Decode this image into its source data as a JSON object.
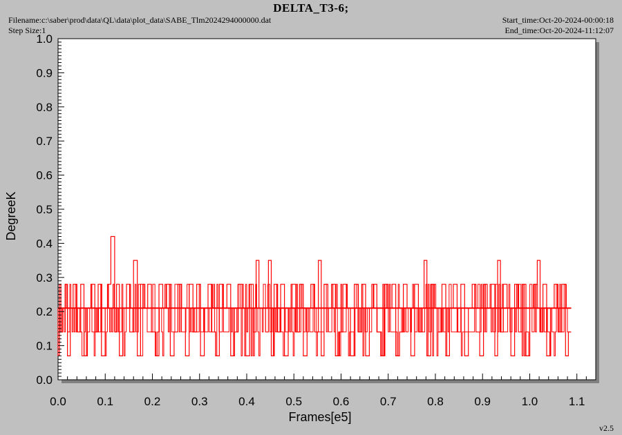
{
  "header": {
    "title": "DELTA_T3-6;",
    "filename": "Filename:c:\\saber\\prod\\data\\QL\\data\\plot_data\\SABE_Tlm2024294000000.dat",
    "step_size": "Step Size:1",
    "start_time": "Start_time:Oct-20-2024-00:00:18",
    "end_time": "End_time:Oct-20-2024-11:12:07"
  },
  "footer": {
    "version": "v2.5"
  },
  "colors": {
    "background": "#c0c0c0",
    "plot_area": "#ffffff",
    "shadow": "#808080",
    "series": "#ff0000",
    "axis": "#000000"
  },
  "chart_data": {
    "type": "line",
    "xlabel": "Frames[e5]",
    "ylabel": "DegreeK",
    "xlim": [
      0.0,
      1.14
    ],
    "ylim": [
      0.0,
      1.0
    ],
    "xticks": [
      "0.0",
      "0.1",
      "0.2",
      "0.3",
      "0.4",
      "0.5",
      "0.6",
      "0.7",
      "0.8",
      "0.9",
      "1.0",
      "1.1"
    ],
    "yticks": [
      "0.0",
      "0.1",
      "0.2",
      "0.3",
      "0.4",
      "0.5",
      "0.6",
      "0.7",
      "0.8",
      "0.9",
      "1.0"
    ],
    "grid": false,
    "series": [
      {
        "levels": [
          0.07,
          0.14,
          0.21,
          0.28
        ],
        "x_range": [
          0.0,
          1.088
        ],
        "points": [
          [
            0.0,
            0.21
          ],
          [
            0.003,
            0.07
          ],
          [
            0.006,
            0.28
          ],
          [
            0.01,
            0.14
          ],
          [
            0.015,
            0.21
          ],
          [
            0.02,
            0.28
          ],
          [
            0.026,
            0.07
          ],
          [
            0.032,
            0.21
          ],
          [
            0.04,
            0.28
          ],
          [
            0.048,
            0.14
          ],
          [
            0.055,
            0.28
          ],
          [
            0.062,
            0.07
          ],
          [
            0.07,
            0.21
          ],
          [
            0.078,
            0.28
          ],
          [
            0.085,
            0.14
          ],
          [
            0.092,
            0.28
          ],
          [
            0.1,
            0.07
          ],
          [
            0.106,
            0.21
          ],
          [
            0.112,
            0.28
          ],
          [
            0.12,
            0.42
          ],
          [
            0.124,
            0.14
          ],
          [
            0.13,
            0.28
          ],
          [
            0.137,
            0.07
          ],
          [
            0.145,
            0.21
          ],
          [
            0.152,
            0.28
          ],
          [
            0.16,
            0.14
          ],
          [
            0.168,
            0.35
          ],
          [
            0.175,
            0.07
          ],
          [
            0.182,
            0.28
          ],
          [
            0.19,
            0.21
          ],
          [
            0.198,
            0.28
          ],
          [
            0.206,
            0.14
          ],
          [
            0.214,
            0.07
          ],
          [
            0.222,
            0.28
          ],
          [
            0.23,
            0.21
          ],
          [
            0.238,
            0.28
          ],
          [
            0.246,
            0.07
          ],
          [
            0.254,
            0.14
          ],
          [
            0.262,
            0.28
          ],
          [
            0.27,
            0.21
          ],
          [
            0.278,
            0.07
          ],
          [
            0.286,
            0.28
          ],
          [
            0.294,
            0.14
          ],
          [
            0.302,
            0.28
          ],
          [
            0.31,
            0.07
          ],
          [
            0.318,
            0.21
          ],
          [
            0.326,
            0.28
          ],
          [
            0.334,
            0.14
          ],
          [
            0.342,
            0.07
          ],
          [
            0.35,
            0.28
          ],
          [
            0.358,
            0.21
          ],
          [
            0.366,
            0.28
          ],
          [
            0.374,
            0.07
          ],
          [
            0.382,
            0.14
          ],
          [
            0.39,
            0.28
          ],
          [
            0.398,
            0.21
          ],
          [
            0.406,
            0.07
          ],
          [
            0.414,
            0.28
          ],
          [
            0.42,
            0.14
          ],
          [
            0.426,
            0.35
          ],
          [
            0.432,
            0.21
          ],
          [
            0.44,
            0.21
          ],
          [
            0.446,
            0.14
          ],
          [
            0.452,
            0.35
          ],
          [
            0.458,
            0.07
          ],
          [
            0.465,
            0.28
          ],
          [
            0.472,
            0.14
          ],
          [
            0.48,
            0.28
          ],
          [
            0.488,
            0.07
          ],
          [
            0.496,
            0.21
          ],
          [
            0.504,
            0.28
          ],
          [
            0.512,
            0.14
          ],
          [
            0.52,
            0.28
          ],
          [
            0.528,
            0.07
          ],
          [
            0.536,
            0.21
          ],
          [
            0.544,
            0.28
          ],
          [
            0.552,
            0.14
          ],
          [
            0.558,
            0.35
          ],
          [
            0.564,
            0.07
          ],
          [
            0.572,
            0.28
          ],
          [
            0.58,
            0.21
          ],
          [
            0.588,
            0.28
          ],
          [
            0.596,
            0.07
          ],
          [
            0.604,
            0.14
          ],
          [
            0.612,
            0.28
          ],
          [
            0.62,
            0.21
          ],
          [
            0.628,
            0.07
          ],
          [
            0.636,
            0.28
          ],
          [
            0.644,
            0.14
          ],
          [
            0.652,
            0.28
          ],
          [
            0.66,
            0.07
          ],
          [
            0.668,
            0.21
          ],
          [
            0.676,
            0.28
          ],
          [
            0.684,
            0.14
          ],
          [
            0.692,
            0.07
          ],
          [
            0.7,
            0.28
          ],
          [
            0.708,
            0.21
          ],
          [
            0.716,
            0.28
          ],
          [
            0.724,
            0.07
          ],
          [
            0.732,
            0.14
          ],
          [
            0.74,
            0.28
          ],
          [
            0.748,
            0.21
          ],
          [
            0.756,
            0.07
          ],
          [
            0.764,
            0.28
          ],
          [
            0.772,
            0.14
          ],
          [
            0.776,
            0.21
          ],
          [
            0.782,
            0.35
          ],
          [
            0.79,
            0.07
          ],
          [
            0.798,
            0.28
          ],
          [
            0.806,
            0.21
          ],
          [
            0.814,
            0.14
          ],
          [
            0.822,
            0.28
          ],
          [
            0.83,
            0.07
          ],
          [
            0.838,
            0.21
          ],
          [
            0.846,
            0.28
          ],
          [
            0.854,
            0.14
          ],
          [
            0.862,
            0.28
          ],
          [
            0.87,
            0.07
          ],
          [
            0.878,
            0.21
          ],
          [
            0.886,
            0.28
          ],
          [
            0.894,
            0.14
          ],
          [
            0.902,
            0.07
          ],
          [
            0.91,
            0.28
          ],
          [
            0.918,
            0.21
          ],
          [
            0.926,
            0.28
          ],
          [
            0.932,
            0.07
          ],
          [
            0.938,
            0.35
          ],
          [
            0.944,
            0.14
          ],
          [
            0.952,
            0.28
          ],
          [
            0.96,
            0.21
          ],
          [
            0.968,
            0.07
          ],
          [
            0.976,
            0.28
          ],
          [
            0.984,
            0.14
          ],
          [
            0.992,
            0.28
          ],
          [
            1.0,
            0.07
          ],
          [
            1.008,
            0.21
          ],
          [
            1.016,
            0.28
          ],
          [
            1.022,
            0.35
          ],
          [
            1.028,
            0.14
          ],
          [
            1.036,
            0.28
          ],
          [
            1.044,
            0.07
          ],
          [
            1.052,
            0.21
          ],
          [
            1.06,
            0.28
          ],
          [
            1.068,
            0.14
          ],
          [
            1.076,
            0.28
          ],
          [
            1.082,
            0.07
          ],
          [
            1.088,
            0.14
          ]
        ]
      }
    ]
  }
}
